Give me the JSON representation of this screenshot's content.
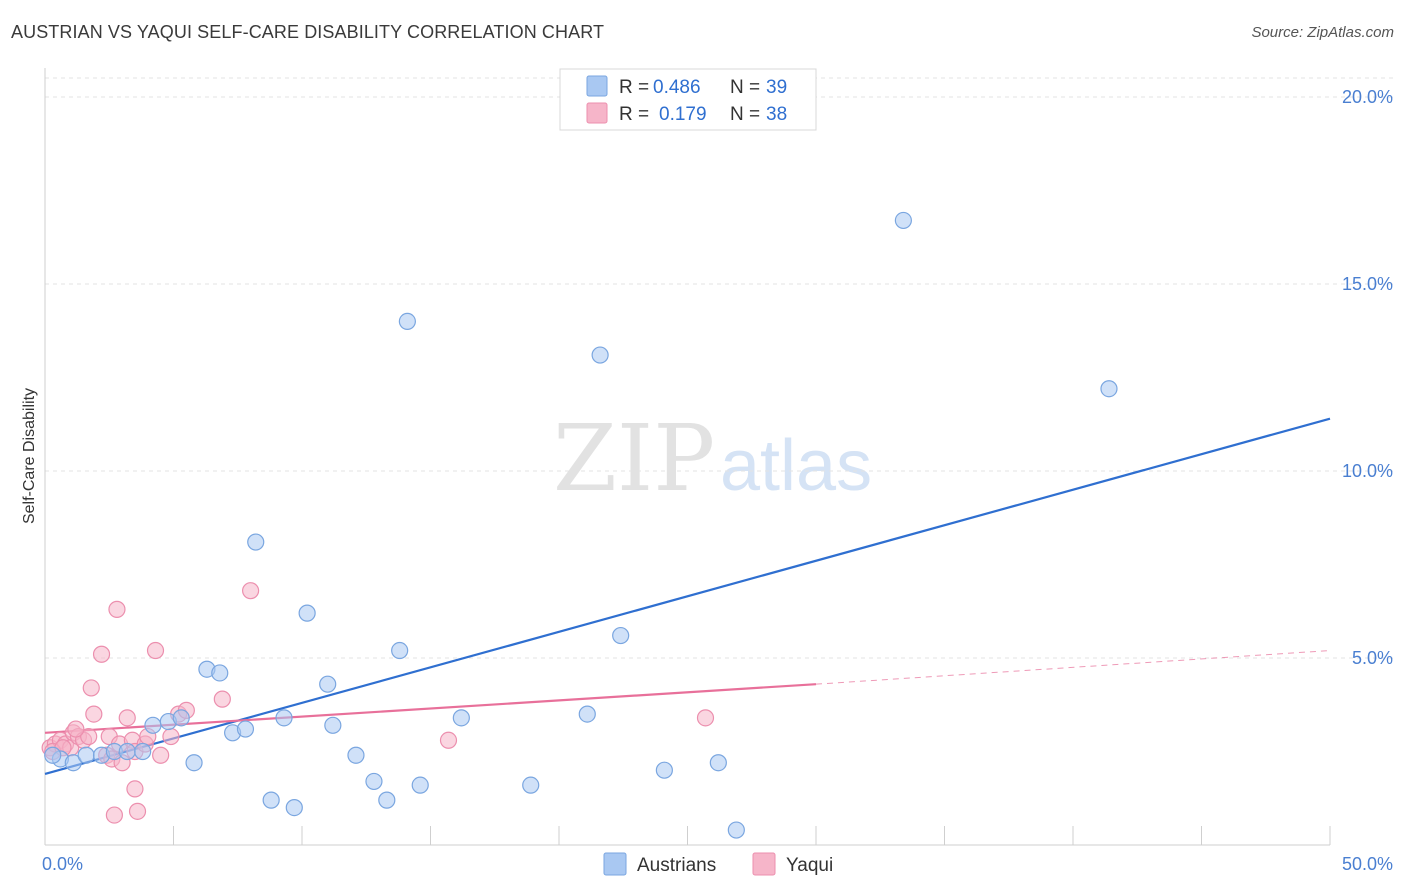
{
  "header": {
    "title": "AUSTRIAN VS YAQUI SELF-CARE DISABILITY CORRELATION CHART",
    "source": "Source: ZipAtlas.com"
  },
  "watermark": {
    "zip": "ZIP",
    "atlas": "atlas"
  },
  "legend": {
    "r_label": "R =",
    "n_label": "N =",
    "rows": [
      {
        "r": "0.486",
        "n": "39",
        "color": "#a9c8f2"
      },
      {
        "r": "0.179",
        "n": "38",
        "color": "#f6b5c9"
      }
    ]
  },
  "bottom_legend": [
    {
      "label": "Austrians",
      "color": "#a9c8f2"
    },
    {
      "label": "Yaqui",
      "color": "#f6b5c9"
    }
  ],
  "colors": {
    "blue_point": "#a9c8f2",
    "blue_stroke": "#7aa6e0",
    "blue_line": "#2f6fd0",
    "pink_point": "#f6b5c9",
    "pink_stroke": "#ec8fae",
    "pink_line": "#e8709a",
    "grid": "#e3e3e3",
    "axis_text": "#4a7fd1"
  },
  "chart_data": {
    "type": "scatter",
    "title": "AUSTRIAN VS YAQUI SELF-CARE DISABILITY CORRELATION CHART",
    "xlabel": "",
    "ylabel": "Self-Care Disability",
    "xlim": [
      0,
      50
    ],
    "ylim": [
      0,
      20.5
    ],
    "x_tick_labels": [
      {
        "value": 0,
        "label": "0.0%"
      },
      {
        "value": 50,
        "label": "50.0%"
      }
    ],
    "y_tick_labels": [
      {
        "value": 5,
        "label": "5.0%"
      },
      {
        "value": 10,
        "label": "10.0%"
      },
      {
        "value": 15,
        "label": "15.0%"
      },
      {
        "value": 20,
        "label": "20.0%"
      }
    ],
    "x_minor_ticks": [
      5,
      10,
      15,
      20,
      25,
      30,
      35,
      40,
      45,
      50
    ],
    "series": [
      {
        "name": "Austrians",
        "r": 0.486,
        "n": 39,
        "trend": {
          "x": [
            0,
            50
          ],
          "y": [
            1.9,
            11.4
          ]
        },
        "points": [
          [
            0.6,
            2.3
          ],
          [
            1.1,
            2.2
          ],
          [
            1.6,
            2.4
          ],
          [
            2.2,
            2.4
          ],
          [
            2.7,
            2.5
          ],
          [
            3.2,
            2.5
          ],
          [
            3.8,
            2.5
          ],
          [
            4.2,
            3.2
          ],
          [
            4.8,
            3.3
          ],
          [
            5.3,
            3.4
          ],
          [
            5.8,
            2.2
          ],
          [
            6.3,
            4.7
          ],
          [
            6.8,
            4.6
          ],
          [
            7.3,
            3.0
          ],
          [
            7.8,
            3.1
          ],
          [
            8.2,
            8.1
          ],
          [
            8.8,
            1.2
          ],
          [
            9.3,
            3.4
          ],
          [
            9.7,
            1.0
          ],
          [
            10.2,
            6.2
          ],
          [
            11.0,
            4.3
          ],
          [
            11.2,
            3.2
          ],
          [
            12.1,
            2.4
          ],
          [
            12.8,
            1.7
          ],
          [
            13.3,
            1.2
          ],
          [
            13.8,
            5.2
          ],
          [
            14.1,
            14.0
          ],
          [
            14.6,
            1.6
          ],
          [
            16.2,
            3.4
          ],
          [
            18.9,
            1.6
          ],
          [
            21.1,
            3.5
          ],
          [
            21.6,
            13.1
          ],
          [
            22.4,
            5.6
          ],
          [
            24.1,
            2.0
          ],
          [
            26.2,
            2.2
          ],
          [
            26.9,
            0.4
          ],
          [
            33.4,
            16.7
          ],
          [
            41.4,
            12.2
          ],
          [
            0.3,
            2.4
          ]
        ]
      },
      {
        "name": "Yaqui",
        "r": 0.179,
        "n": 38,
        "trend": {
          "x": [
            0,
            30
          ],
          "y": [
            3.0,
            4.3
          ]
        },
        "trend_dashed_extension": {
          "x": [
            30,
            50
          ],
          "y": [
            4.3,
            5.2
          ]
        },
        "points": [
          [
            0.2,
            2.6
          ],
          [
            0.4,
            2.7
          ],
          [
            0.6,
            2.8
          ],
          [
            0.8,
            2.7
          ],
          [
            1.0,
            2.6
          ],
          [
            1.1,
            3.0
          ],
          [
            1.3,
            2.9
          ],
          [
            1.5,
            2.8
          ],
          [
            1.7,
            2.9
          ],
          [
            1.8,
            4.2
          ],
          [
            1.9,
            3.5
          ],
          [
            2.2,
            5.1
          ],
          [
            2.4,
            2.4
          ],
          [
            2.5,
            2.9
          ],
          [
            2.6,
            2.3
          ],
          [
            2.7,
            0.8
          ],
          [
            2.8,
            6.3
          ],
          [
            2.9,
            2.7
          ],
          [
            3.0,
            2.2
          ],
          [
            3.2,
            3.4
          ],
          [
            3.4,
            2.8
          ],
          [
            3.5,
            2.5
          ],
          [
            3.6,
            0.9
          ],
          [
            3.5,
            1.5
          ],
          [
            3.9,
            2.7
          ],
          [
            4.0,
            2.9
          ],
          [
            4.3,
            5.2
          ],
          [
            4.5,
            2.4
          ],
          [
            4.9,
            2.9
          ],
          [
            5.2,
            3.5
          ],
          [
            5.5,
            3.6
          ],
          [
            6.9,
            3.9
          ],
          [
            8.0,
            6.8
          ],
          [
            15.7,
            2.8
          ],
          [
            25.7,
            3.4
          ],
          [
            0.3,
            2.5
          ],
          [
            0.7,
            2.6
          ],
          [
            1.2,
            3.1
          ]
        ]
      }
    ]
  }
}
